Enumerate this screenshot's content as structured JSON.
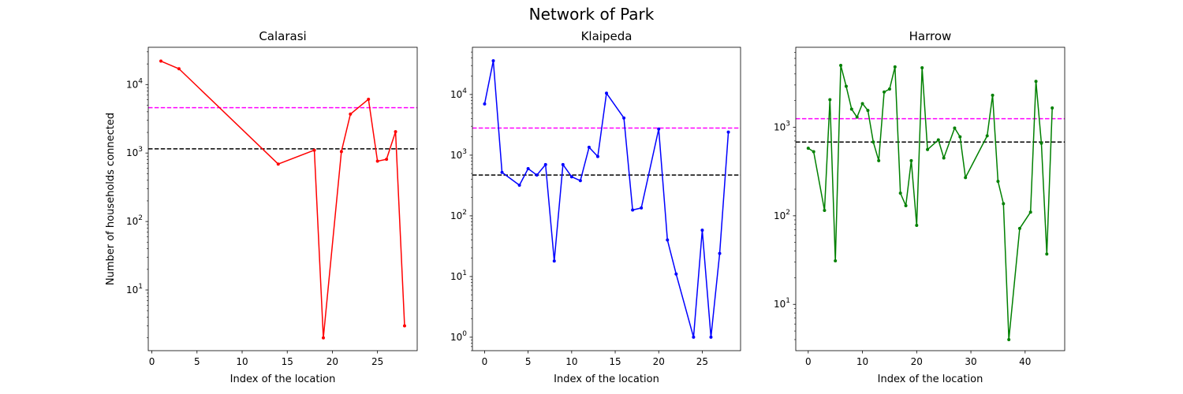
{
  "figure": {
    "title": "Network of Park"
  },
  "chart_data": [
    {
      "type": "line",
      "title": "Calarasi",
      "xlabel": "Index of the location",
      "ylabel": "Number of households connected",
      "yscale": "log",
      "xlim": [
        -0.4,
        29.4
      ],
      "ylim": [
        1.3,
        35000
      ],
      "xticks": [
        0,
        5,
        10,
        15,
        20,
        25
      ],
      "yticks": [
        {
          "value": 10,
          "base": "10",
          "exp": "1"
        },
        {
          "value": 100,
          "base": "10",
          "exp": "2"
        },
        {
          "value": 1000,
          "base": "10",
          "exp": "3"
        },
        {
          "value": 10000,
          "base": "10",
          "exp": "4"
        }
      ],
      "color": "#ff0000",
      "x": [
        1,
        3,
        14,
        18,
        19,
        21,
        22,
        24,
        25,
        26,
        27,
        28
      ],
      "y": [
        22000,
        17000,
        690,
        1100,
        2,
        1050,
        3700,
        6100,
        760,
        810,
        2050,
        3
      ],
      "hlines": [
        {
          "value": 4600,
          "color": "#ff00ff"
        },
        {
          "value": 1150,
          "color": "#000000"
        }
      ]
    },
    {
      "type": "line",
      "title": "Klaipeda",
      "xlabel": "Index of the location",
      "ylabel": "",
      "yscale": "log",
      "xlim": [
        -1.4,
        29.4
      ],
      "ylim": [
        0.6,
        60000
      ],
      "xticks": [
        0,
        5,
        10,
        15,
        20,
        25
      ],
      "yticks": [
        {
          "value": 1,
          "base": "10",
          "exp": "0"
        },
        {
          "value": 10,
          "base": "10",
          "exp": "1"
        },
        {
          "value": 100,
          "base": "10",
          "exp": "2"
        },
        {
          "value": 1000,
          "base": "10",
          "exp": "3"
        },
        {
          "value": 10000,
          "base": "10",
          "exp": "4"
        }
      ],
      "color": "#0000ff",
      "x": [
        0,
        1,
        2,
        4,
        5,
        6,
        7,
        8,
        9,
        10,
        11,
        12,
        13,
        14,
        16,
        17,
        18,
        20,
        21,
        22,
        24,
        25,
        26,
        27,
        28
      ],
      "y": [
        7000,
        36000,
        520,
        320,
        600,
        470,
        700,
        18,
        700,
        440,
        380,
        1350,
        950,
        10500,
        4100,
        125,
        135,
        2700,
        40,
        11,
        1,
        58,
        1,
        24,
        2400
      ],
      "hlines": [
        {
          "value": 2800,
          "color": "#ff00ff"
        },
        {
          "value": 470,
          "color": "#000000"
        }
      ]
    },
    {
      "type": "line",
      "title": "Harrow",
      "xlabel": "Index of the location",
      "ylabel": "",
      "yscale": "log",
      "xlim": [
        -2.3,
        47.3
      ],
      "ylim": [
        3.0,
        8000
      ],
      "xticks": [
        0,
        10,
        20,
        30,
        40
      ],
      "yticks": [
        {
          "value": 10,
          "base": "10",
          "exp": "1"
        },
        {
          "value": 100,
          "base": "10",
          "exp": "2"
        },
        {
          "value": 1000,
          "base": "10",
          "exp": "3"
        }
      ],
      "color": "#008000",
      "x": [
        0,
        1,
        3,
        4,
        5,
        6,
        7,
        8,
        9,
        10,
        11,
        12,
        13,
        14,
        15,
        16,
        17,
        18,
        19,
        20,
        21,
        22,
        24,
        25,
        27,
        28,
        29,
        33,
        34,
        35,
        36,
        37,
        39,
        41,
        42,
        43,
        44,
        45
      ],
      "y": [
        580,
        530,
        115,
        2050,
        31,
        5000,
        2900,
        1600,
        1300,
        1850,
        1550,
        680,
        420,
        2500,
        2700,
        4800,
        180,
        130,
        420,
        78,
        4700,
        560,
        720,
        450,
        980,
        780,
        270,
        800,
        2300,
        245,
        137,
        4,
        72,
        110,
        3300,
        660,
        37,
        1650
      ],
      "hlines": [
        {
          "value": 1250,
          "color": "#ff00ff"
        },
        {
          "value": 680,
          "color": "#000000"
        }
      ]
    }
  ]
}
